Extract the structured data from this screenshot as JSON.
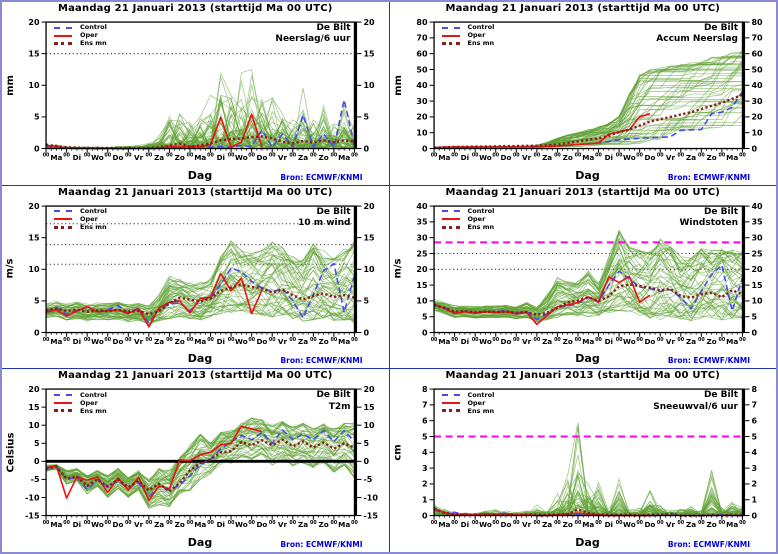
{
  "shared": {
    "legend_labels": [
      "Control",
      "Oper",
      "Ens mn"
    ],
    "xlabel": "Dag",
    "source": "Bron: ECMWF/KNMI",
    "x_axis": {
      "label": "Dag",
      "days": 15,
      "step": 0.5,
      "day_labels": [
        "Ma",
        "Di",
        "Wo",
        "Do",
        "Vr",
        "Za",
        "Zo",
        "Ma",
        "Di",
        "Wo",
        "Do",
        "Vr",
        "Za",
        "Zo",
        "Ma"
      ],
      "hour_label": "00"
    },
    "colors": {
      "control": "#4a4af0",
      "oper": "#ee1111",
      "ens_mean": "#8b1c1c",
      "ensemble": "#5da032",
      "threshold": "#333333",
      "magenta": "#ff00e6",
      "zero_line": "#000000",
      "source_text": "#0000dd",
      "frame_border": "#8a8ad2",
      "panel_divider": "#2233bb"
    }
  },
  "chart_data": [
    {
      "type": "line",
      "title": "Maandag  21 Januari  2013  (starttijd Ma 00 UTC)",
      "station": "De Bilt",
      "variable": "Neerslag/6 uur",
      "ylabel": "mm",
      "ylim": [
        0,
        20
      ],
      "yticks": [
        0,
        5,
        10,
        15,
        20
      ],
      "thresholds_dotted": [
        15
      ],
      "thresholds_magenta": [],
      "zero_line": false,
      "series": {
        "control": [
          0.3,
          0.2,
          0.1,
          0,
          0,
          0,
          0,
          0,
          0,
          0,
          0,
          0,
          0.1,
          0.2,
          0.1,
          0.3,
          0.2,
          0.3,
          0.2,
          0.5,
          0.3,
          2.9,
          0.2,
          2.3,
          0.3,
          5.3,
          0.3,
          2.3,
          0.2,
          7.7,
          0.5
        ],
        "oper": [
          0.5,
          0.3,
          0.1,
          0.1,
          0.05,
          0,
          0.05,
          0,
          0,
          0.05,
          0,
          0.1,
          0.3,
          0.2,
          0.4,
          0.3,
          0.6,
          4.9,
          0.2,
          1.0,
          5.4,
          0.3
        ],
        "ens_mean": [
          0.6,
          0.4,
          0.2,
          0.15,
          0.1,
          0.1,
          0.1,
          0.1,
          0.1,
          0.1,
          0.1,
          0.2,
          0.4,
          0.8,
          0.3,
          0.5,
          0.8,
          1.3,
          1.5,
          1.6,
          1.8,
          1.9,
          1.6,
          1.1,
          0.8,
          1.2,
          0.9,
          1.3,
          1.0,
          1.3,
          1.1
        ]
      },
      "ensemble": {
        "members": 50,
        "style": "spiky",
        "env_min": 0,
        "env_max": [
          0.9,
          0.6,
          0.3,
          0.3,
          0.3,
          0.3,
          0.3,
          0.4,
          0.5,
          0.5,
          0.8,
          2.0,
          5.0,
          6.5,
          5.5,
          7.0,
          9.5,
          12.5,
          10.0,
          12.0,
          12.5,
          9.0,
          8.0,
          6.0,
          5.5,
          10.0,
          6.0,
          7.5,
          6.0,
          8.0,
          4.0
        ]
      }
    },
    {
      "type": "line",
      "title": "Maandag  21 Januari  2013  (starttijd Ma 00 UTC)",
      "station": "De Bilt",
      "variable": "Accum Neerslag",
      "ylabel": "mm",
      "ylim": [
        0,
        80
      ],
      "yticks": [
        0,
        10,
        20,
        30,
        40,
        50,
        60,
        70,
        80
      ],
      "thresholds_dotted": [],
      "thresholds_magenta": [],
      "zero_line": false,
      "series": {
        "control": [
          0.5,
          0.8,
          1.0,
          1.0,
          1.0,
          1.0,
          1.0,
          1.0,
          1.0,
          1.0,
          1.0,
          1.2,
          1.5,
          2.0,
          2.5,
          3.0,
          3.5,
          4.5,
          5.5,
          6.0,
          6.5,
          6.8,
          7.0,
          7.5,
          11.5,
          11.8,
          12.0,
          22.0,
          23.0,
          26.0,
          36.0
        ],
        "oper": [
          0.5,
          0.8,
          1.0,
          1.0,
          1.0,
          1.0,
          1.0,
          1.0,
          1.0,
          1.0,
          1.0,
          1.2,
          1.5,
          2.0,
          2.5,
          3.0,
          3.5,
          9.0,
          10.5,
          12.0,
          20.0,
          22.0
        ],
        "ens_mean": [
          0.5,
          0.8,
          1.0,
          1.1,
          1.2,
          1.3,
          1.4,
          1.5,
          1.6,
          1.7,
          1.8,
          2.0,
          2.5,
          3.5,
          4.5,
          5.5,
          6.5,
          8.0,
          10.5,
          12.0,
          14.5,
          17.0,
          18.5,
          20.0,
          21.5,
          23.0,
          25.0,
          27.0,
          29.0,
          31.5,
          34.0
        ]
      },
      "ensemble": {
        "members": 50,
        "style": "accum",
        "env_min": [
          0.3,
          0.5,
          0.6,
          0.7,
          0.8,
          0.8,
          0.9,
          0.9,
          1,
          1,
          1,
          1,
          1,
          1.1,
          1.2,
          1.3,
          1.4,
          1.5,
          1.6,
          1.8,
          2,
          2.2,
          2.5,
          2.8,
          3,
          3.5,
          4,
          4.5,
          5,
          6,
          7
        ],
        "env_max": [
          1,
          1.2,
          1.3,
          1.4,
          1.5,
          1.5,
          1.6,
          1.7,
          1.8,
          2,
          3,
          6,
          10,
          13,
          15,
          17,
          19,
          22,
          27,
          45,
          60,
          61,
          61,
          61,
          61,
          61,
          61,
          61.5,
          61.5,
          62,
          62
        ]
      }
    },
    {
      "type": "line",
      "title": "Maandag  21 Januari  2013  (starttijd Ma 00 UTC)",
      "station": "De Bilt",
      "variable": "10 m wind",
      "ylabel": "m/s",
      "ylim": [
        0,
        20
      ],
      "yticks": [
        0,
        5,
        10,
        15,
        20
      ],
      "thresholds_dotted": [
        10.8,
        13.9,
        17.2
      ],
      "thresholds_magenta": [],
      "zero_line": false,
      "series": {
        "control": [
          3.4,
          3.9,
          2.9,
          3.5,
          4.0,
          3.2,
          3.6,
          4.3,
          3.1,
          3.9,
          1.5,
          3.8,
          4.5,
          4.7,
          3.4,
          5.2,
          5.5,
          7.6,
          10.2,
          9.6,
          8.1,
          7.0,
          6.4,
          7.0,
          5.0,
          2.3,
          6.0,
          9.8,
          10.9,
          3.2,
          9.0
        ],
        "oper": [
          3.2,
          3.6,
          2.6,
          3.4,
          4.1,
          3.3,
          3.4,
          3.6,
          3.0,
          3.8,
          0.9,
          3.9,
          4.8,
          5.0,
          3.1,
          5.4,
          5.6,
          9.3,
          6.6,
          8.6,
          3.0,
          6.7
        ],
        "ens_mean": [
          3.5,
          3.8,
          3.4,
          3.6,
          3.3,
          3.5,
          3.4,
          3.6,
          3.3,
          3.4,
          2.9,
          3.4,
          4.6,
          5.5,
          5.2,
          4.9,
          5.4,
          6.6,
          7.1,
          7.6,
          7.2,
          7.0,
          6.3,
          6.8,
          5.9,
          5.2,
          5.8,
          6.2,
          5.6,
          5.9,
          5.5
        ]
      },
      "ensemble": {
        "members": 50,
        "style": "band",
        "env_min": [
          2.2,
          2.6,
          2.0,
          2.2,
          1.8,
          2.0,
          1.9,
          2.1,
          1.7,
          1.9,
          1.2,
          1.8,
          2.2,
          2.5,
          2.2,
          2.0,
          2.4,
          3.0,
          3.2,
          3.5,
          3.0,
          2.8,
          2.5,
          2.8,
          2.2,
          1.8,
          2.0,
          2.3,
          1.9,
          2.0,
          1.5
        ],
        "env_max": [
          4.5,
          5.0,
          4.6,
          4.8,
          4.5,
          4.7,
          4.6,
          4.8,
          4.4,
          4.6,
          4.2,
          6.0,
          9.0,
          8.5,
          8.0,
          8.0,
          8.5,
          12.0,
          14.5,
          13.0,
          12.5,
          13.0,
          14.8,
          13.5,
          12.0,
          11.5,
          14.5,
          13.0,
          12.0,
          13.5,
          14.5
        ]
      }
    },
    {
      "type": "line",
      "title": "Maandag  21 Januari  2013  (starttijd Ma 00 UTC)",
      "station": "De Bilt",
      "variable": "Windstoten",
      "ylabel": "m/s",
      "ylim": [
        0,
        40
      ],
      "yticks": [
        0,
        5,
        10,
        15,
        20,
        25,
        30,
        35,
        40
      ],
      "thresholds_dotted": [
        20,
        25
      ],
      "thresholds_magenta": [
        28.5
      ],
      "zero_line": false,
      "series": {
        "control": [
          8.8,
          7.9,
          6.4,
          6.7,
          6.3,
          6.7,
          6.6,
          6.9,
          6.1,
          6.6,
          4.1,
          6.0,
          8.0,
          8.4,
          9.2,
          11.0,
          9.8,
          15.0,
          19.4,
          17.0,
          14.4,
          14.0,
          13.0,
          13.6,
          11.0,
          7.6,
          13.0,
          18.4,
          21.3,
          6.8,
          17.4
        ],
        "oper": [
          9.0,
          7.6,
          6.1,
          6.6,
          6.1,
          6.6,
          6.4,
          6.6,
          5.9,
          6.4,
          2.6,
          5.4,
          8.2,
          8.7,
          9.5,
          11.3,
          9.6,
          17.6,
          15.8,
          17.8,
          9.6,
          11.8
        ],
        "ens_mean": [
          8.7,
          7.8,
          6.6,
          6.8,
          6.4,
          6.6,
          6.5,
          6.7,
          6.3,
          6.5,
          5.6,
          6.2,
          7.8,
          9.6,
          10.1,
          11.2,
          10.0,
          11.5,
          14.6,
          15.2,
          14.7,
          14.2,
          13.4,
          13.7,
          11.6,
          11.0,
          12.1,
          12.6,
          11.2,
          13.4,
          12.1
        ]
      },
      "ensemble": {
        "members": 50,
        "style": "band",
        "env_min": [
          6.8,
          6.0,
          4.8,
          5.0,
          4.6,
          4.8,
          4.7,
          4.9,
          4.4,
          4.6,
          3.4,
          4.0,
          4.8,
          5.5,
          5.2,
          5.0,
          5.4,
          6.0,
          7.0,
          6.5,
          5.5,
          4.5,
          4.0,
          5.0,
          4.2,
          3.8,
          4.5,
          4.8,
          4.0,
          4.5,
          3.5
        ],
        "env_max": [
          10.5,
          9.5,
          8.5,
          8.5,
          8.3,
          8.5,
          8.4,
          8.6,
          8.2,
          9.5,
          8.0,
          12.0,
          17.5,
          16.0,
          16.5,
          19.5,
          16.0,
          24.0,
          32.3,
          27.0,
          26.0,
          25.5,
          29.5,
          27.0,
          24.0,
          23.5,
          26.5,
          26.0,
          27.5,
          26.0,
          25.5
        ]
      }
    },
    {
      "type": "line",
      "title": "Maandag  21 Januari  2013  (starttijd Ma 00 UTC)",
      "station": "De Bilt",
      "variable": "T2m",
      "ylabel": "Celsius",
      "ylim": [
        -15,
        20
      ],
      "yticks": [
        -15,
        -10,
        -5,
        0,
        5,
        10,
        15,
        20
      ],
      "thresholds_dotted": [],
      "thresholds_magenta": [],
      "zero_line": true,
      "series": {
        "control": [
          -2.0,
          -1.4,
          -5.0,
          -4.4,
          -7.8,
          -5.0,
          -7.0,
          -5.5,
          -7.2,
          -6.0,
          -9.8,
          -7.0,
          -8.0,
          -6.5,
          -4.0,
          -1.0,
          0.5,
          3.5,
          5.5,
          7.2,
          6.0,
          8.0,
          5.0,
          8.7,
          6.0,
          7.5,
          6.0,
          8.5,
          5.5,
          8.5,
          5.5
        ],
        "oper": [
          -1.8,
          -1.2,
          -10.2,
          -4.3,
          -5.2,
          -4.3,
          -8.6,
          -4.6,
          -8.0,
          -4.4,
          -10.8,
          -6.8,
          -7.6,
          0.4,
          0.2,
          1.8,
          2.5,
          4.6,
          5.0,
          9.7,
          9.0,
          8.2
        ],
        "ens_mean": [
          -2.0,
          -1.5,
          -4.8,
          -4.2,
          -6.8,
          -5.0,
          -7.0,
          -5.0,
          -7.2,
          -5.4,
          -8.0,
          -6.2,
          -8.3,
          -6.0,
          -2.5,
          -0.5,
          0.5,
          2.5,
          2.8,
          5.3,
          4.5,
          5.8,
          4.5,
          6.0,
          4.2,
          5.5,
          3.8,
          5.2,
          3.5,
          5.0,
          3.8
        ]
      },
      "ensemble": {
        "members": 50,
        "style": "temp",
        "env_min": [
          -2.8,
          -2.2,
          -6.5,
          -5.5,
          -9.0,
          -7.0,
          -10.0,
          -7.5,
          -10.0,
          -8.0,
          -13.0,
          -12.0,
          -12.5,
          -9.0,
          -8.0,
          -5.0,
          -3.5,
          -1.0,
          -0.5,
          1.0,
          0.5,
          1.5,
          -1.0,
          0.5,
          -1.5,
          -0.5,
          -2.0,
          -0.5,
          -3.0,
          -1.0,
          -4.5
        ],
        "env_max": [
          -1.0,
          -0.8,
          -2.5,
          -2.0,
          -4.0,
          -2.5,
          -4.0,
          -2.0,
          -4.5,
          -2.5,
          -5.0,
          -2.0,
          -2.5,
          1.0,
          4.5,
          7.5,
          5.0,
          8.0,
          8.5,
          10.5,
          12.0,
          11.5,
          10.0,
          11.0,
          9.5,
          10.5,
          9.0,
          10.5,
          9.0,
          10.5,
          10.5
        ]
      }
    },
    {
      "type": "line",
      "title": "Maandag  21 Januari  2013  (starttijd Ma 00 UTC)",
      "station": "De Bilt",
      "variable": "Sneeuwval/6 uur",
      "ylabel": "cm",
      "ylim": [
        0,
        8
      ],
      "yticks": [
        0,
        1,
        2,
        3,
        4,
        5,
        6,
        7,
        8
      ],
      "thresholds_dotted": [],
      "thresholds_magenta": [
        5
      ],
      "zero_line": false,
      "series": {
        "control": [
          0.35,
          0.15,
          0.2,
          0.05,
          0.05,
          0.05,
          0.1,
          0.15,
          0.05,
          0.05,
          0,
          0,
          0.05,
          0.05,
          0.1,
          0.05,
          0,
          0,
          0,
          0,
          0,
          0,
          0,
          0.15,
          0,
          0,
          0,
          0,
          0.05,
          0,
          0
        ],
        "oper": [
          0.4,
          0.2,
          0.05,
          0.1,
          0.05,
          0.1,
          0.05,
          0.1,
          0.05,
          0.05,
          0,
          0,
          0.05,
          0.1,
          0.15,
          0.1,
          0.05,
          0,
          0,
          0,
          0,
          0
        ],
        "ens_mean": [
          0.45,
          0.15,
          0.05,
          0.05,
          0.05,
          0.05,
          0.05,
          0.05,
          0.05,
          0.05,
          0.05,
          0.05,
          0.05,
          0.1,
          0.4,
          0.15,
          0.05,
          0.05,
          0.05,
          0.05,
          0,
          0.05,
          0.05,
          0.1,
          0,
          0,
          0,
          0.05,
          0,
          0.05,
          0
        ]
      },
      "ensemble": {
        "members": 50,
        "style": "spiky",
        "env_min": 0,
        "env_max": [
          1.0,
          0.5,
          0.2,
          0.2,
          0.2,
          0.3,
          0.4,
          0.3,
          0.2,
          0.3,
          0.9,
          0.3,
          1.4,
          2.8,
          6.6,
          2.2,
          2.8,
          0.5,
          3.3,
          0.4,
          0.5,
          2.3,
          0.9,
          0.3,
          0.5,
          0.9,
          0.3,
          3.3,
          0.5,
          1.1,
          0.6
        ]
      }
    }
  ]
}
